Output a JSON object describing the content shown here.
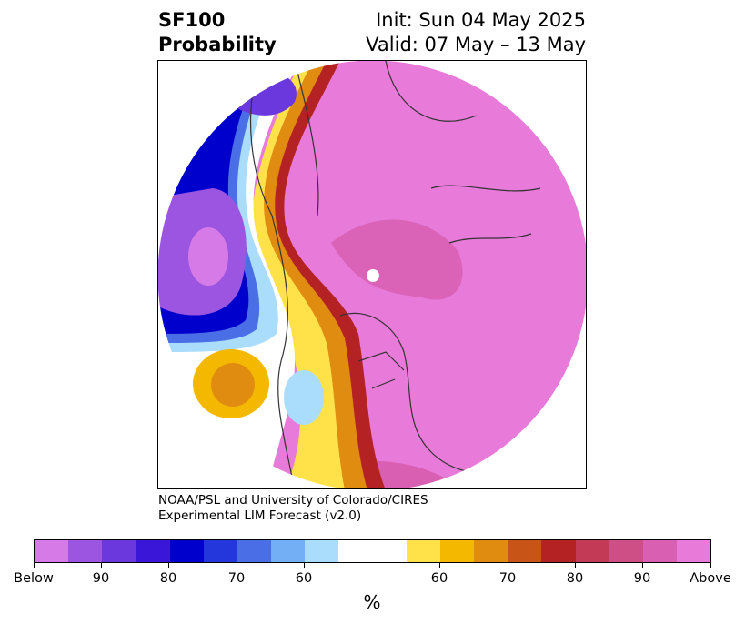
{
  "header": {
    "title_line1": "SF100",
    "title_line2": "Probability",
    "init": "Init: Sun 04 May 2025",
    "valid": "Valid: 07 May – 13 May"
  },
  "credit": {
    "line1": "NOAA/PSL and University of Colorado/CIRES",
    "line2": "Experimental LIM Forecast (v2.0)"
  },
  "colorbar": {
    "unit": "%",
    "colors": [
      "#d67ae8",
      "#9b55e0",
      "#6a38dc",
      "#3a16d8",
      "#0000cc",
      "#2337dd",
      "#4a6ee6",
      "#72aff5",
      "#aadcfb",
      "#ffffff",
      "#ffffff",
      "#ffe24a",
      "#f4b800",
      "#e08c10",
      "#c85418",
      "#b52223",
      "#c23a56",
      "#cd4f86",
      "#d85fb2",
      "#e87ad9"
    ],
    "tick_labels": [
      "Below",
      "90",
      "80",
      "70",
      "60",
      "60",
      "70",
      "80",
      "90",
      "Above"
    ]
  },
  "map": {
    "projection": "polar stereographic (North America)",
    "field_colors": {
      "above_90": "#e87ad9",
      "above_80": "#d85fb2",
      "above_70": "#c23a56",
      "above_60": "#f4b800",
      "below_90": "#9b55e0",
      "below_80": "#0000cc",
      "below_60": "#aadcfb",
      "background": "#ffffff"
    }
  }
}
